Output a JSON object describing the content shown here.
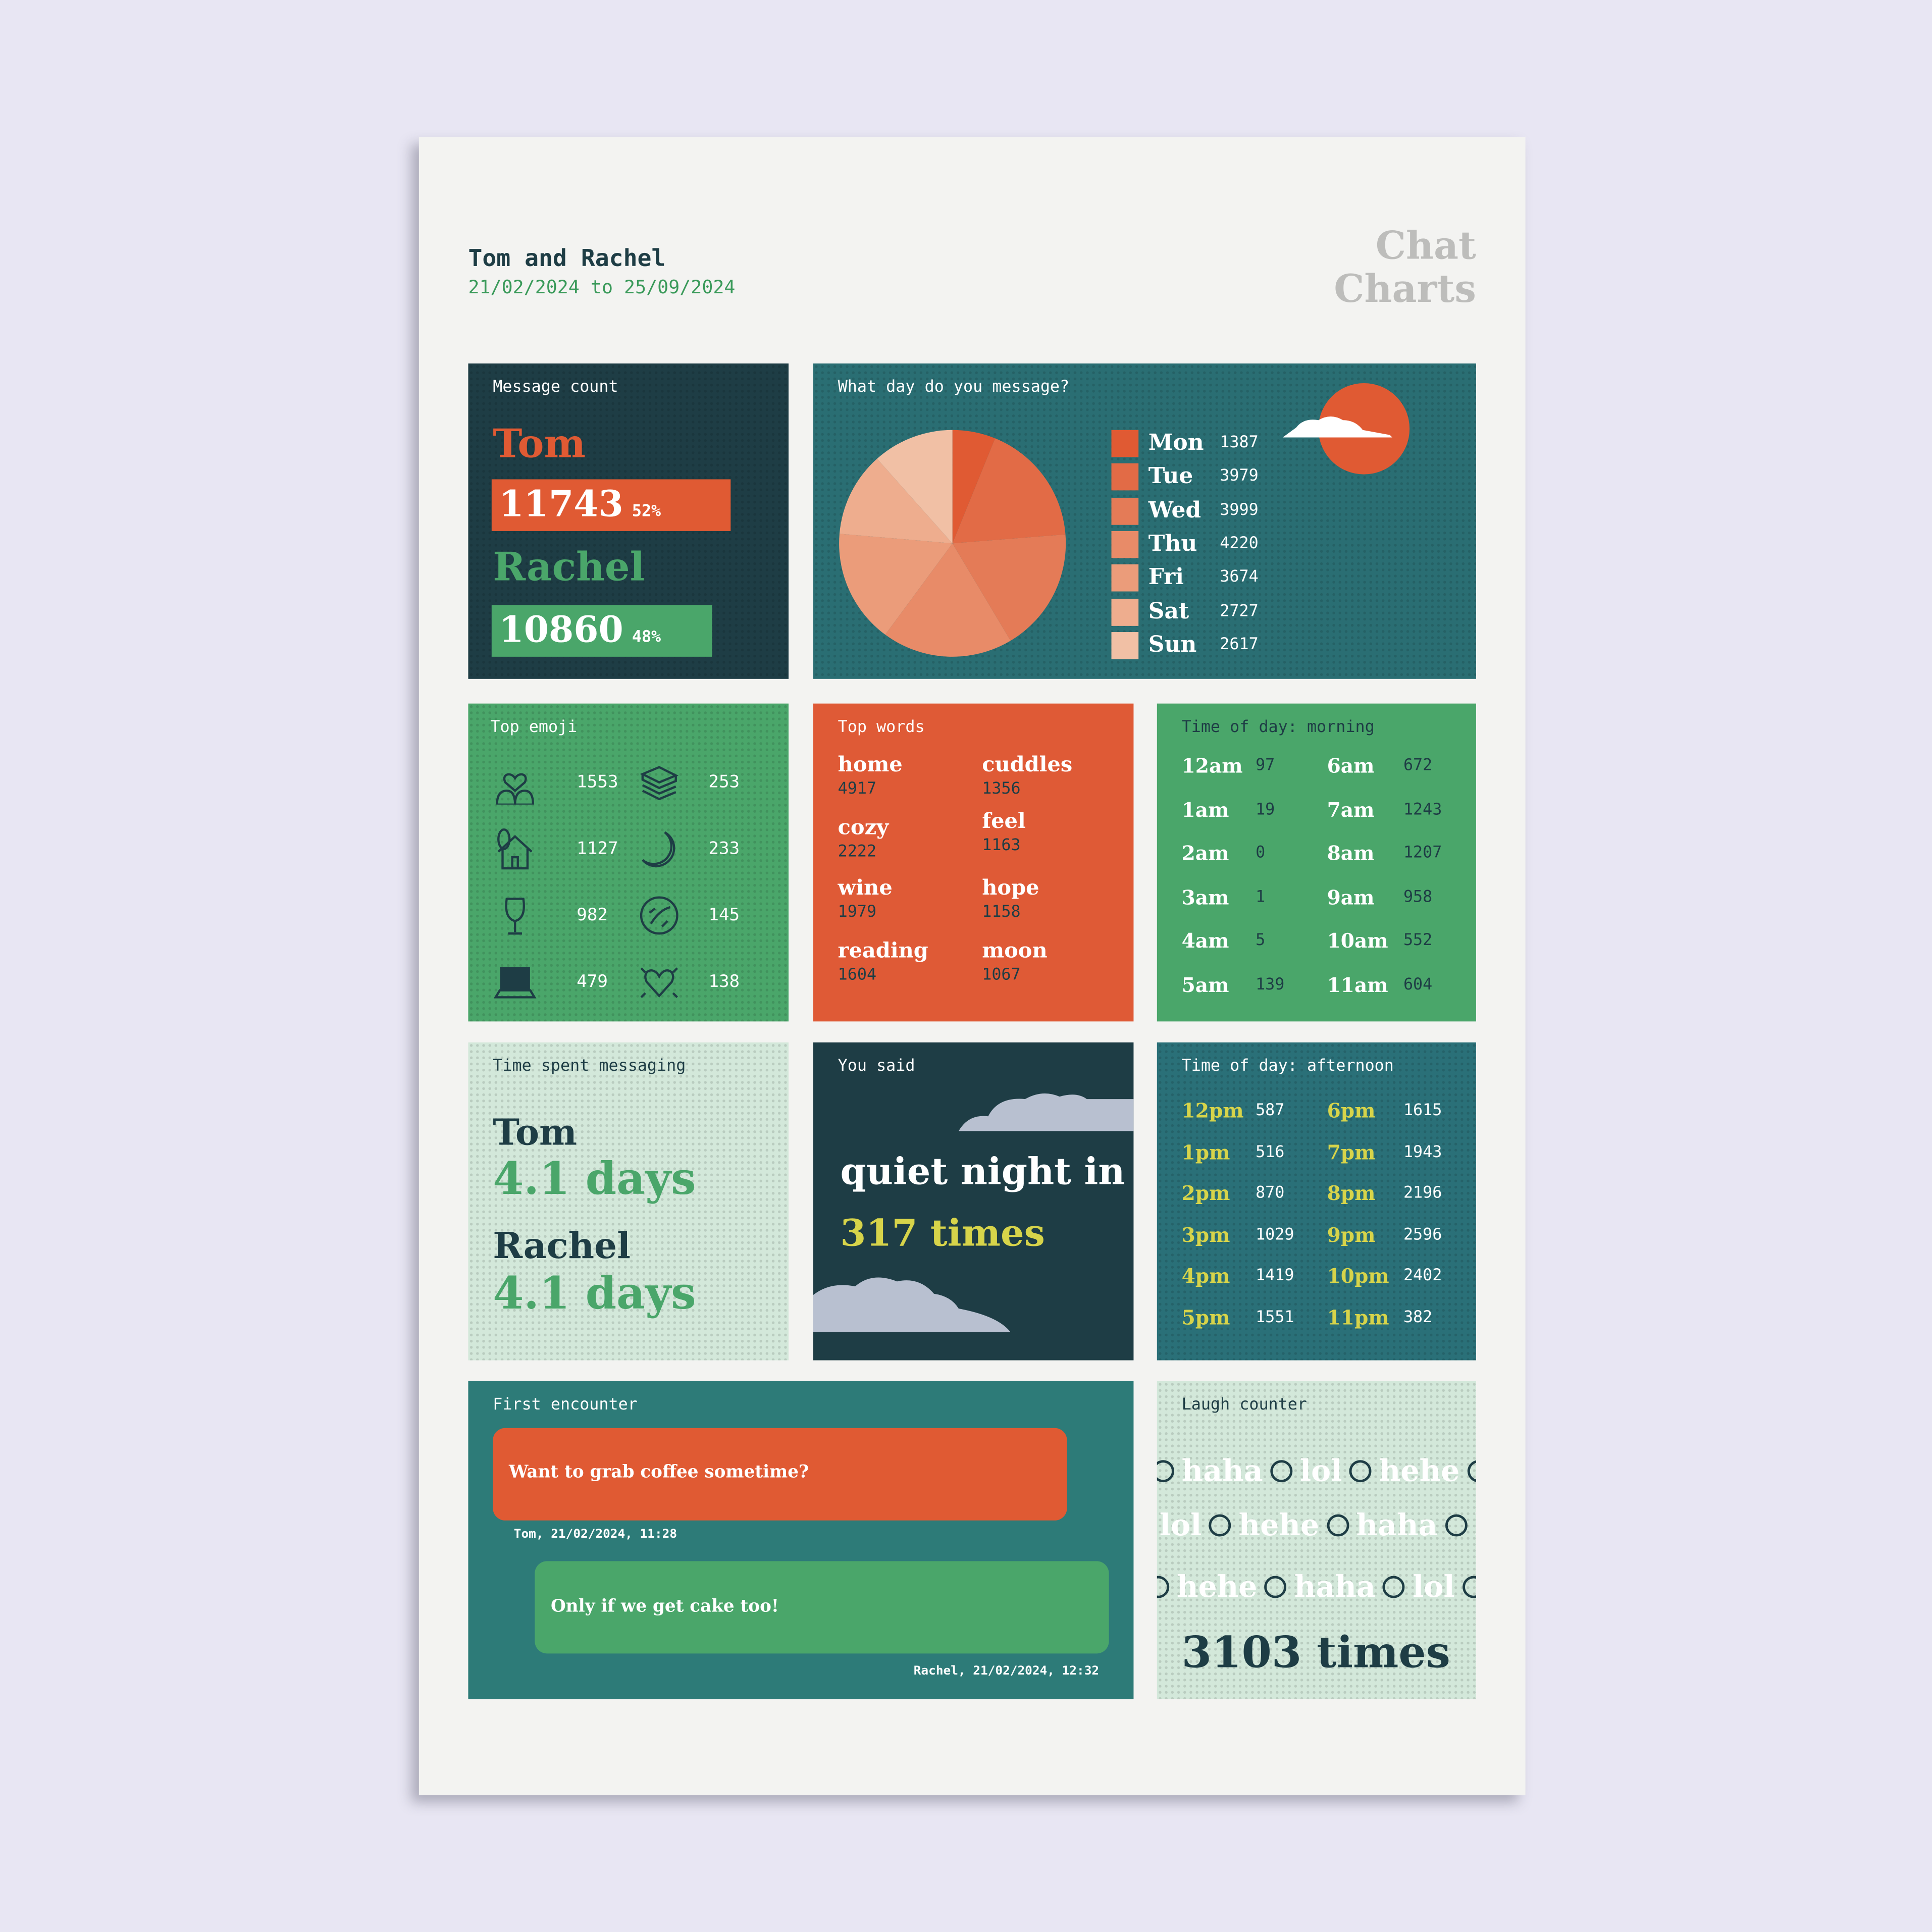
{
  "header": {
    "title": "Tom and Rachel",
    "date_range": "21/02/2024 to 25/09/2024",
    "logo_line1": "Chat",
    "logo_line2": "Charts"
  },
  "colors": {
    "dark": "#1e3d45",
    "teal": "#2a6e73",
    "green": "#4aa66a",
    "orange": "#df5a36",
    "mint": "#d3e8da",
    "yellow": "#d7d44a",
    "background": "#e8e6f3",
    "paper": "#f3f3f1"
  },
  "message_count": {
    "title": "Message count",
    "people": [
      {
        "name": "Tom",
        "count": "11743",
        "percent": "52%",
        "share": 52
      },
      {
        "name": "Rachel",
        "count": "10860",
        "percent": "48%",
        "share": 48
      }
    ]
  },
  "chart_data": {
    "type": "pie",
    "title": "What day do you message?",
    "categories": [
      "Mon",
      "Tue",
      "Wed",
      "Thu",
      "Fri",
      "Sat",
      "Sun"
    ],
    "values": [
      1387,
      3979,
      3999,
      4220,
      3674,
      2727,
      2617
    ],
    "colors": [
      "#e05a33",
      "#e26b46",
      "#e47b57",
      "#e88b68",
      "#eb9c7a",
      "#eead8e",
      "#f1c0a5"
    ],
    "legend": "right"
  },
  "top_emoji": {
    "title": "Top emoji",
    "items": [
      {
        "icon": "smiling-faces-heart-icon",
        "count": "1553"
      },
      {
        "icon": "books-icon",
        "count": "253"
      },
      {
        "icon": "house-icon",
        "count": "1127"
      },
      {
        "icon": "crescent-moon-icon",
        "count": "233"
      },
      {
        "icon": "wine-glass-icon",
        "count": "982"
      },
      {
        "icon": "rolling-laughing-icon",
        "count": "145"
      },
      {
        "icon": "laptop-icon",
        "count": "479"
      },
      {
        "icon": "beating-heart-icon",
        "count": "138"
      }
    ]
  },
  "top_words": {
    "title": "Top words",
    "items": [
      {
        "word": "home",
        "count": "4917"
      },
      {
        "word": "cuddles",
        "count": "1356"
      },
      {
        "word": "cozy",
        "count": "2222"
      },
      {
        "word": "feel",
        "count": "1163"
      },
      {
        "word": "wine",
        "count": "1979"
      },
      {
        "word": "hope",
        "count": "1158"
      },
      {
        "word": "reading",
        "count": "1604"
      },
      {
        "word": "moon",
        "count": "1067"
      }
    ]
  },
  "morning": {
    "title": "Time of day: morning",
    "hours": [
      {
        "h": "12am",
        "v": "97"
      },
      {
        "h": "6am",
        "v": "672"
      },
      {
        "h": "1am",
        "v": "19"
      },
      {
        "h": "7am",
        "v": "1243"
      },
      {
        "h": "2am",
        "v": "0"
      },
      {
        "h": "8am",
        "v": "1207"
      },
      {
        "h": "3am",
        "v": "1"
      },
      {
        "h": "9am",
        "v": "958"
      },
      {
        "h": "4am",
        "v": "5"
      },
      {
        "h": "10am",
        "v": "552"
      },
      {
        "h": "5am",
        "v": "139"
      },
      {
        "h": "11am",
        "v": "604"
      }
    ]
  },
  "afternoon": {
    "title": "Time of day: afternoon",
    "hours": [
      {
        "h": "12pm",
        "v": "587"
      },
      {
        "h": "6pm",
        "v": "1615"
      },
      {
        "h": "1pm",
        "v": "516"
      },
      {
        "h": "7pm",
        "v": "1943"
      },
      {
        "h": "2pm",
        "v": "870"
      },
      {
        "h": "8pm",
        "v": "2196"
      },
      {
        "h": "3pm",
        "v": "1029"
      },
      {
        "h": "9pm",
        "v": "2596"
      },
      {
        "h": "4pm",
        "v": "1419"
      },
      {
        "h": "10pm",
        "v": "2402"
      },
      {
        "h": "5pm",
        "v": "1551"
      },
      {
        "h": "11pm",
        "v": "382"
      }
    ]
  },
  "time_spent": {
    "title": "Time spent messaging",
    "people": [
      {
        "name": "Tom",
        "value": "4.1 days"
      },
      {
        "name": "Rachel",
        "value": "4.1 days"
      }
    ]
  },
  "you_said": {
    "title": "You said",
    "phrase": "quiet night in",
    "times": "317 times"
  },
  "first_encounter": {
    "title": "First encounter",
    "message1": {
      "text": "Want to grab coffee sometime?",
      "meta": "Tom, 21/02/2024, 11:28"
    },
    "message2": {
      "text": "Only if we get cake too!",
      "meta": "Rachel, 21/02/2024, 12:32"
    }
  },
  "laugh_counter": {
    "title": "Laugh counter",
    "words": [
      "haha",
      "lol",
      "hehe"
    ],
    "total": "3103 times"
  }
}
